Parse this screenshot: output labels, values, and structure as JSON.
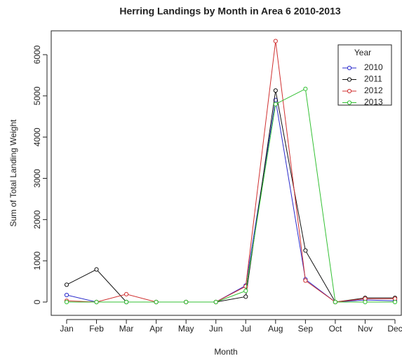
{
  "chart_data": {
    "type": "line",
    "title": "Herring Landings by Month in Area 6 2010-2013",
    "x_label": "Month",
    "y_label": "Sum of Total Landing Weight",
    "categories": [
      "Jan",
      "Feb",
      "Mar",
      "Apr",
      "May",
      "Jun",
      "Jul",
      "Aug",
      "Sep",
      "Oct",
      "Nov",
      "Dec"
    ],
    "series": [
      {
        "name": "2010",
        "color": "#2a2acc",
        "values": [
          170,
          0,
          0,
          0,
          0,
          0,
          400,
          4900,
          550,
          0,
          50,
          30
        ]
      },
      {
        "name": "2011",
        "color": "#111111",
        "values": [
          420,
          790,
          0,
          0,
          0,
          0,
          130,
          5130,
          1250,
          0,
          100,
          100
        ]
      },
      {
        "name": "2012",
        "color": "#d03030",
        "values": [
          30,
          0,
          190,
          0,
          0,
          0,
          380,
          6330,
          520,
          0,
          80,
          80
        ]
      },
      {
        "name": "2013",
        "color": "#33c033",
        "values": [
          0,
          0,
          0,
          0,
          0,
          0,
          270,
          4800,
          5170,
          0,
          0,
          0
        ]
      }
    ],
    "legend_title": "Year",
    "legend": "topright",
    "ylim": [
      0,
      6000
    ],
    "yticks": [
      0,
      1000,
      2000,
      3000,
      4000,
      5000,
      6000
    ]
  }
}
